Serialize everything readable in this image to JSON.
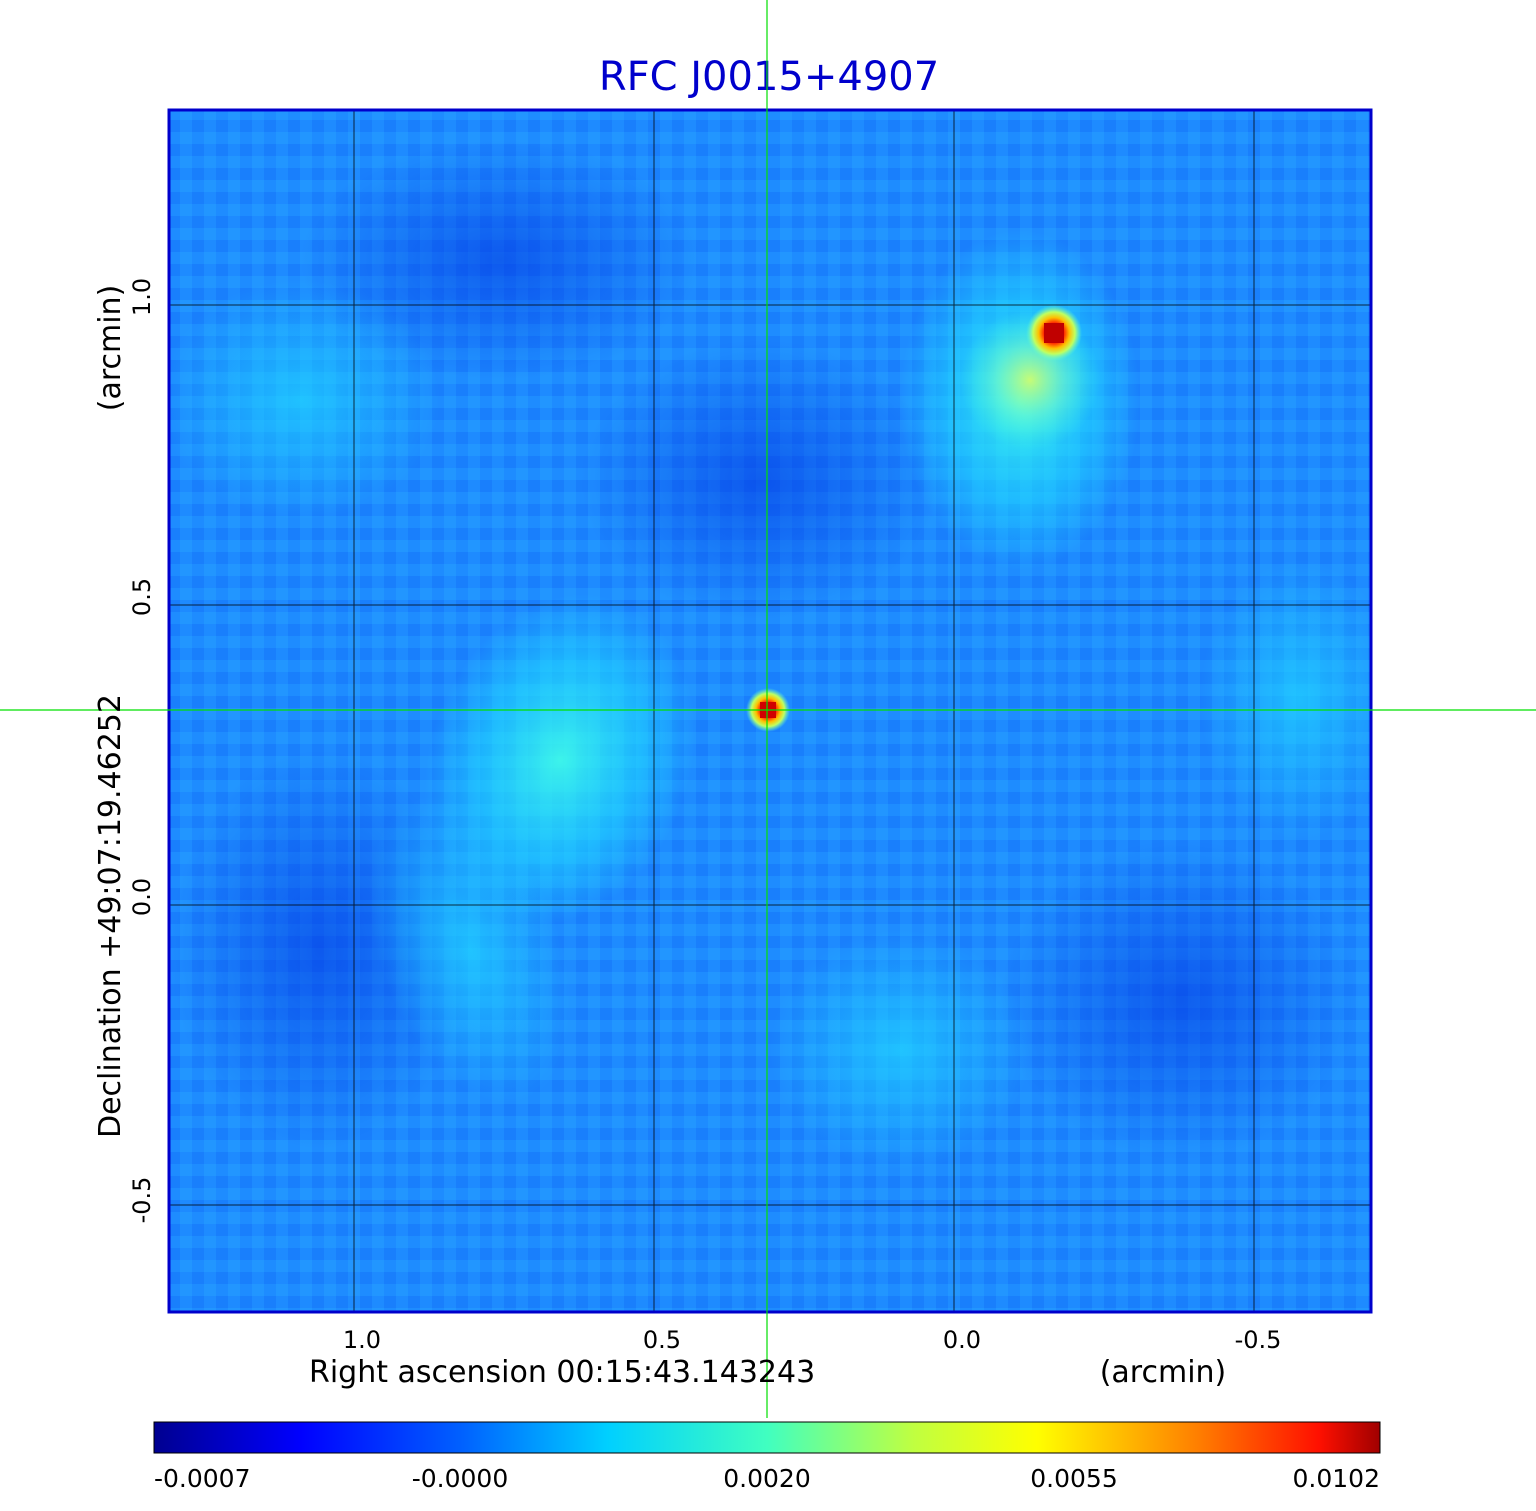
{
  "title": "RFC J0015+4907",
  "x_axis": {
    "label": "Right ascension  00:15:43.143243",
    "unit": "(arcmin)",
    "ticks": [
      "1.0",
      "0.5",
      "0.0",
      "-0.5"
    ]
  },
  "y_axis": {
    "label": "Declination  +49:07:19.46252",
    "unit": "(arcmin)",
    "ticks": [
      "1.0",
      "0.5",
      "0.0",
      "-0.5"
    ]
  },
  "colorbar": {
    "colormap": "jet",
    "ticks": [
      "-0.0007",
      "-0.0000",
      "0.0020",
      "0.0055",
      "0.0102"
    ]
  },
  "colors": {
    "title": "#0000cc",
    "frame": "#0000cc",
    "crosshair": "#00e000",
    "grid": "#000000",
    "background_map": "#1e90ff"
  },
  "sources": [
    {
      "name": "central-source",
      "ra_offset_arcmin": 0.31,
      "dec_offset_arcmin": 0.32,
      "peak": 0.0102
    },
    {
      "name": "north-west-source",
      "ra_offset_arcmin": -0.16,
      "dec_offset_arcmin": 0.95,
      "peak": 0.0102
    }
  ]
}
